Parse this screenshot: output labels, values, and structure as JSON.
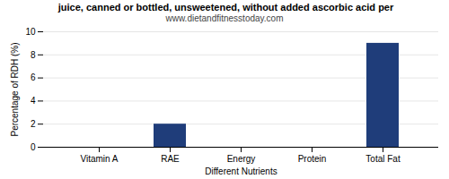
{
  "chart_data": {
    "type": "bar",
    "title": " juice, canned or bottled, unsweetened, without added ascorbic acid per",
    "subtitle": "www.dietandfitnesstoday.com",
    "xlabel": "Different Nutrients",
    "ylabel": "Percentage of RDH (%)",
    "categories": [
      "Vitamin A",
      "RAE",
      "Energy",
      "Protein",
      "Total Fat"
    ],
    "values": [
      0,
      2,
      0,
      0,
      9
    ],
    "color": "#1f3d7a",
    "ylim": [
      0,
      10
    ],
    "yticks": [
      0,
      2,
      4,
      6,
      8,
      10
    ],
    "grid": true
  }
}
